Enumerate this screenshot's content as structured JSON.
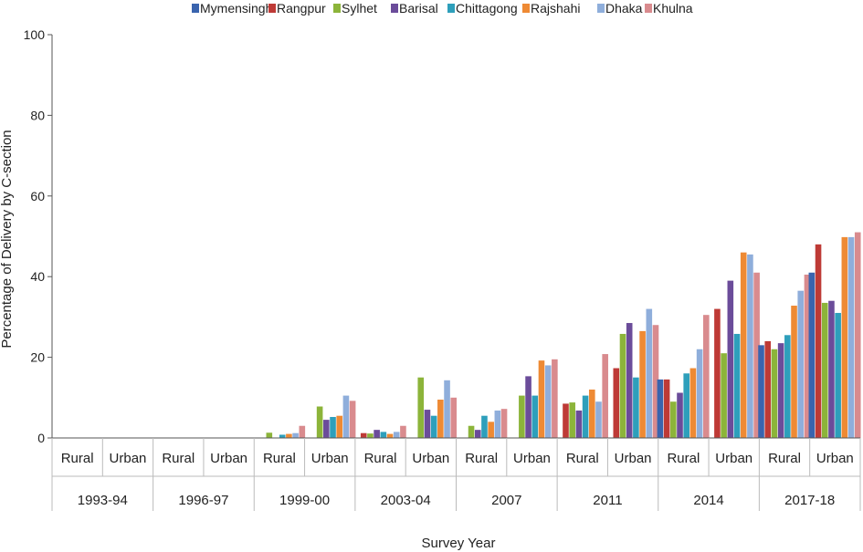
{
  "chart_data": {
    "type": "bar",
    "title": "",
    "ylabel": "Percentage of Delivery by C-section",
    "xlabel": "Survey Year",
    "ylim": [
      0,
      100
    ],
    "yticks": [
      "0",
      "20",
      "40",
      "60",
      "80",
      "100"
    ],
    "legend_position": "top",
    "grid": false,
    "years": [
      "1993-94",
      "1996-97",
      "1999-00",
      "2003-04",
      "2007",
      "2011",
      "2014",
      "2017-18"
    ],
    "residence": [
      "Rural",
      "Urban"
    ],
    "series": [
      {
        "name": "Mymensingh",
        "color": "#3a64ae",
        "values": [
          null,
          null,
          null,
          null,
          null,
          null,
          null,
          null,
          null,
          null,
          null,
          null,
          14.5,
          null,
          23.0,
          41.0
        ]
      },
      {
        "name": "Rangpur",
        "color": "#be3a36",
        "values": [
          null,
          null,
          null,
          null,
          0.0,
          null,
          1.2,
          null,
          0.0,
          null,
          8.5,
          17.3,
          14.5,
          32.0,
          24.0,
          48.0
        ]
      },
      {
        "name": "Sylhet",
        "color": "#8cb43a",
        "values": [
          null,
          null,
          null,
          null,
          1.3,
          7.8,
          1.1,
          15.0,
          3.0,
          10.5,
          8.8,
          25.8,
          9.0,
          21.0,
          22.0,
          33.5
        ]
      },
      {
        "name": "Barisal",
        "color": "#6b4c9a",
        "values": [
          null,
          null,
          null,
          null,
          0.0,
          4.5,
          2.0,
          7.0,
          2.0,
          15.3,
          6.8,
          28.5,
          11.2,
          39.0,
          23.5,
          34.0
        ]
      },
      {
        "name": "Chittagong",
        "color": "#2e9fbb",
        "values": [
          null,
          null,
          null,
          null,
          0.8,
          5.2,
          1.5,
          5.5,
          5.5,
          10.5,
          10.5,
          15.0,
          16.0,
          25.8,
          25.5,
          31.0
        ]
      },
      {
        "name": "Rajshahi",
        "color": "#ee8a34",
        "values": [
          null,
          null,
          null,
          null,
          1.0,
          5.5,
          1.0,
          9.5,
          4.0,
          19.2,
          12.0,
          26.5,
          17.3,
          46.0,
          32.8,
          49.8
        ]
      },
      {
        "name": "Dhaka",
        "color": "#8faedb",
        "values": [
          null,
          null,
          null,
          null,
          1.2,
          10.5,
          1.5,
          14.3,
          6.8,
          18.0,
          9.0,
          32.0,
          22.0,
          45.5,
          36.5,
          49.8
        ]
      },
      {
        "name": "Khulna",
        "color": "#d98b8e",
        "values": [
          null,
          null,
          null,
          null,
          3.0,
          9.2,
          3.0,
          10.0,
          7.2,
          19.5,
          20.8,
          28.0,
          30.5,
          41.0,
          40.5,
          51.0
        ]
      }
    ]
  }
}
